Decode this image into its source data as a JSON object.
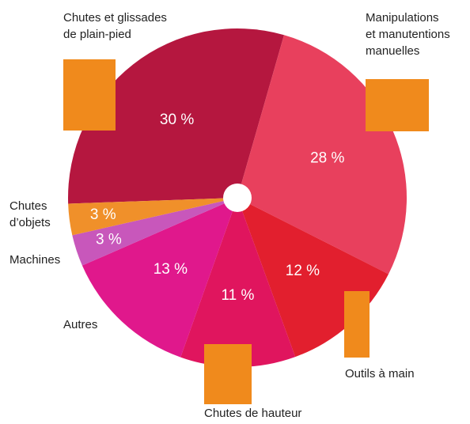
{
  "chart_data": {
    "type": "pie",
    "categories": [
      "Chutes et glissades\nde plain-pied",
      "Manipulations\net manutentions\nmanuelles",
      "Outils à main",
      "Chutes de hauteur",
      "Autres",
      "Machines",
      "Chutes\nd’objets"
    ],
    "values": [
      30,
      28,
      12,
      11,
      13,
      3,
      3
    ],
    "value_labels": [
      "30 %",
      "28 %",
      "12 %",
      "11 %",
      "13 %",
      "3 %",
      "3 %"
    ],
    "colors": [
      "#b5173f",
      "#e8405d",
      "#e21f2e",
      "#e0155e",
      "#e0188c",
      "#c857bb",
      "#f0902a"
    ]
  }
}
